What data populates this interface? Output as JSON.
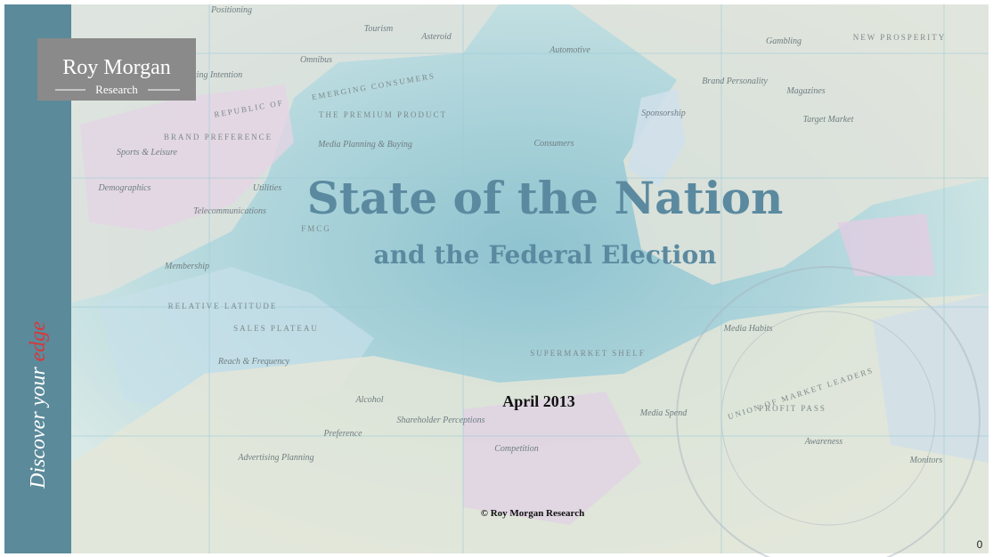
{
  "logo": {
    "name": "Roy Morgan",
    "sub": "Research"
  },
  "sidebar": {
    "text": "Discover your",
    "emphasis": "edge"
  },
  "title": "State of the Nation",
  "subtitle": "and the Federal Election",
  "date": "April 2013",
  "copyright": "© Roy Morgan Research",
  "page_number": "0",
  "map_labels": [
    "Positioning",
    "Tourism",
    "Asteroid",
    "Automotive",
    "Gambling",
    "NEW PROSPERITY",
    "Omnibus",
    "Voting Intention",
    "EMERGING CONSUMERS",
    "Brand Personality",
    "Magazines",
    "REPUBLIC OF",
    "THE PREMIUM PRODUCT",
    "Sponsorship",
    "Target Market",
    "BRAND PREFERENCE",
    "Media Planning & Buying",
    "Consumers",
    "Sports & Leisure",
    "Demographics",
    "Utilities",
    "Telecommunications",
    "FMCG",
    "Membership",
    "RELATIVE LATITUDE",
    "SALES PLATEAU",
    "Reach & Frequency",
    "SUPERMARKET SHELF",
    "Media Habits",
    "Alcohol",
    "Shareholder Perceptions",
    "Preference",
    "Competition",
    "Media Spend",
    "Advertising Planning",
    "Awareness",
    "Monitors",
    "UNION OF MARKET LEADERS",
    "PROFIT PASS"
  ]
}
